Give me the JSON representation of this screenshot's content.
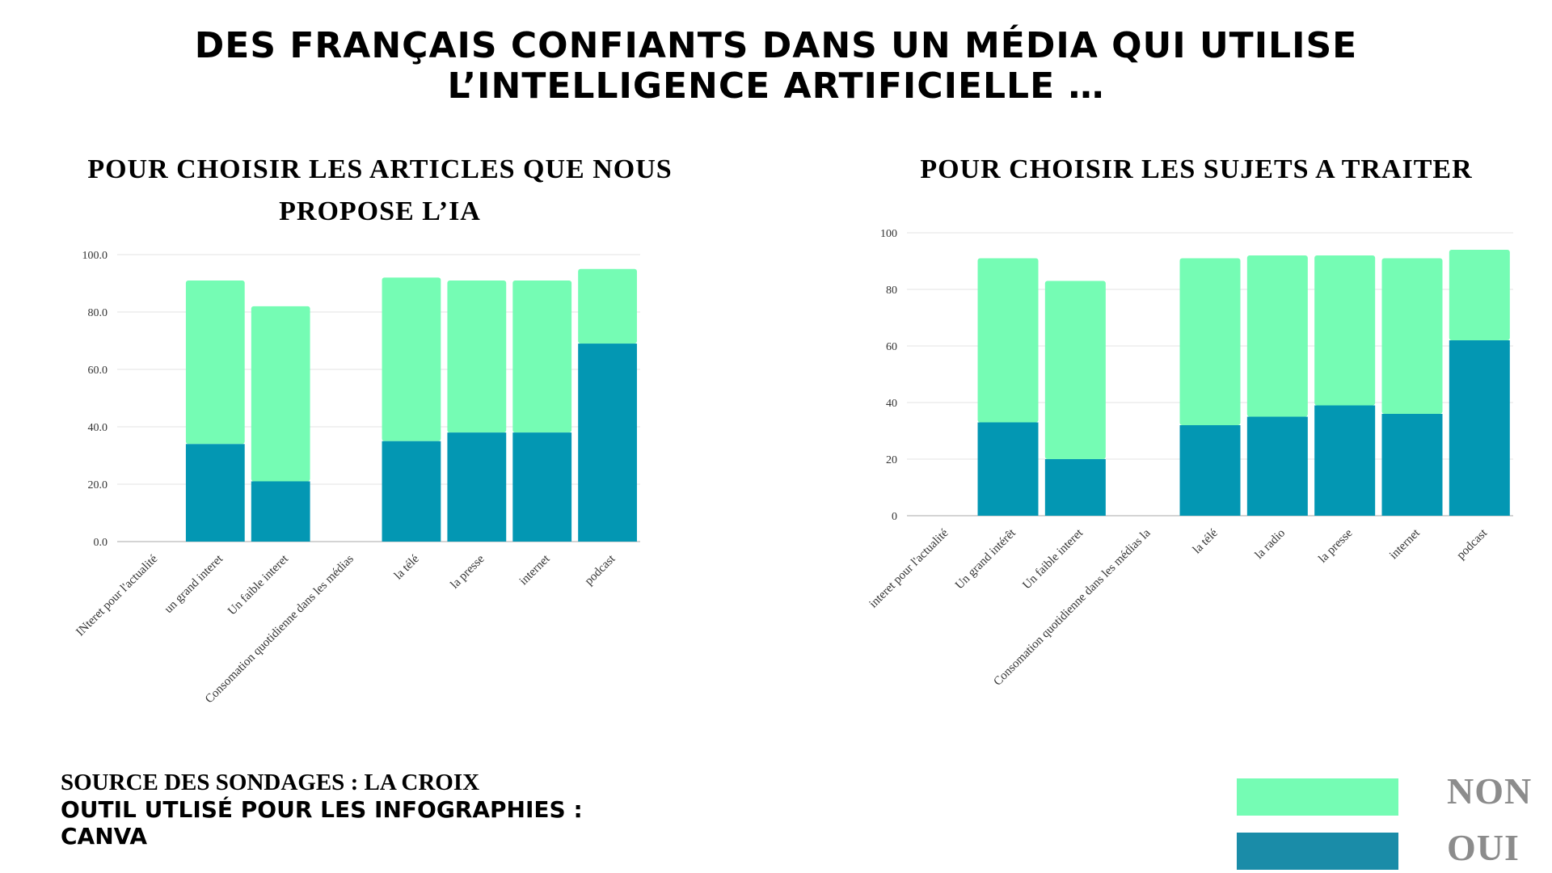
{
  "title": {
    "line1": "DES FRANÇAIS CONFIANTS DANS UN MÉDIA QUI UTILISE",
    "line2": "L’INTELLIGENCE ARTIFICIELLE …"
  },
  "colors": {
    "non": "#75FCB4",
    "oui": "#0397B3",
    "grid": "#E3E3E3",
    "axis": "#AAAAAA",
    "legend_text": "#8C8C8C"
  },
  "legend": {
    "non_label": "NON",
    "oui_label": "OUI",
    "non_color": "#75FCB4",
    "oui_color": "#1A8CA8"
  },
  "footer": {
    "source": "SOURCE DES SONDAGES : LA CROIX",
    "tool": "OUTIL UTLISÉ POUR LES INFOGRAPHIES : CANVA"
  },
  "chart_data": [
    {
      "type": "bar",
      "stacked": true,
      "title": "POUR CHOISIR LES ARTICLES QUE NOUS PROPOSE L’IA",
      "categories": [
        "INteret pour l'actualité",
        "un grand interet",
        "Un faible interet",
        "Consomation quotidienne dans les médias",
        "la télé",
        "la presse",
        "internet",
        "podcast"
      ],
      "series": [
        {
          "name": "OUI",
          "values": [
            null,
            34,
            21,
            null,
            35,
            38,
            38,
            69
          ]
        },
        {
          "name": "NON",
          "values": [
            null,
            57,
            61,
            null,
            57,
            53,
            53,
            26
          ]
        }
      ],
      "ylim": [
        0,
        100
      ],
      "yticks": [
        "0.0",
        "20.0",
        "40.0",
        "60.0",
        "80.0",
        "100.0"
      ],
      "grid": true
    },
    {
      "type": "bar",
      "stacked": true,
      "title": "POUR CHOISIR LES SUJETS A TRAITER",
      "categories": [
        "interet pour l'actualité",
        "Un grand intérêt",
        "Un faible interet",
        "Consomation quotidienne dans les médias la",
        "la télé",
        "la radio",
        "la presse",
        "internet",
        "podcast"
      ],
      "series": [
        {
          "name": "OUI",
          "values": [
            null,
            33,
            20,
            null,
            32,
            35,
            39,
            36,
            62
          ]
        },
        {
          "name": "NON",
          "values": [
            null,
            58,
            63,
            null,
            59,
            57,
            53,
            55,
            32
          ]
        }
      ],
      "ylim": [
        0,
        100
      ],
      "yticks": [
        "0",
        "20",
        "40",
        "60",
        "80",
        "100"
      ],
      "grid": true
    }
  ]
}
